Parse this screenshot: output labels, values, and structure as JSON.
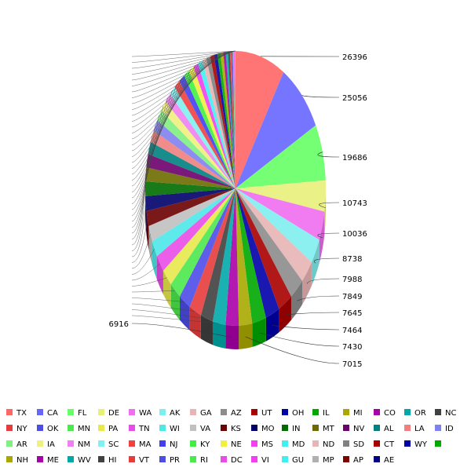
{
  "chart_data": {
    "type": "pie",
    "title": "",
    "legend_position": "bottom",
    "grid": false,
    "categories": [
      "TX",
      "CA",
      "FL",
      "DE",
      "WA",
      "AK",
      "GA",
      "AZ",
      "UT",
      "OH",
      "IL",
      "MI",
      "CO",
      "OR",
      "NC",
      "NY",
      "OK",
      "MN",
      "PA",
      "TN",
      "WI",
      "VA",
      "KS",
      "MO",
      "IN",
      "MT",
      "NV",
      "AL",
      "LA",
      "ID",
      "AR",
      "IA",
      "NM",
      "SC",
      "MA",
      "NJ",
      "KY",
      "NE",
      "MS",
      "MD",
      "ND",
      "SD",
      "CT",
      "WY",
      "",
      "NH",
      "ME",
      "WV",
      "HI",
      "VT",
      "PR",
      "RI",
      "DC",
      "VI",
      "GU",
      "MP",
      "AP",
      "AE"
    ],
    "values": [
      26396,
      25056,
      19686,
      10743,
      10036,
      8738,
      7988,
      7849,
      7645,
      7464,
      7430,
      7015,
      6916,
      6810,
      6519,
      6453,
      6362,
      6202,
      6115,
      5948,
      5683,
      5523,
      5338,
      5077,
      5045,
      4874,
      4621,
      4352,
      4201,
      4050,
      3885,
      3731,
      3565,
      3399,
      3240,
      3075,
      2955,
      2771,
      2585,
      2446,
      2285,
      2130,
      1970,
      1808,
      1650,
      1489,
      1326,
      1167,
      1003,
      845,
      686,
      527,
      372,
      212,
      152,
      92,
      38,
      9
    ],
    "label_values": [
      "26396",
      "25056",
      "19686",
      "10743",
      "10036",
      "8738",
      "7988",
      "7849",
      "7645",
      "7464",
      "7430",
      "7015",
      "6916"
    ],
    "colors": [
      "#FF6666",
      "#6666FF",
      "#66FF66",
      "#E8F07A",
      "#F06EF0",
      "#7FEEEE",
      "#E8B4B4",
      "#8C8C8C",
      "#A80000",
      "#0000A8",
      "#00A800",
      "#A8A800",
      "#A800A8",
      "#00A8A8",
      "#404040",
      "#E83C3C",
      "#4D4DE8",
      "#4DE84D",
      "#E8E84D",
      "#E84DE8",
      "#4DE8E8",
      "#C0C0C0",
      "#6B0000",
      "#00006B",
      "#006B00",
      "#6B6B00",
      "#6B006B",
      "#008080",
      "#F08080",
      "#8080F0",
      "#80F080",
      "#F0F080",
      "#F080F0",
      "#80F0F0",
      "#F04040",
      "#4040F0",
      "#40F040",
      "#F0F040",
      "#F040F0",
      "#40F0F0",
      "#E8B4B4",
      "#808080",
      "#A80000",
      "#0000A8",
      "#00A800",
      "#A8A800",
      "#A800A8",
      "#00A8A8",
      "#404040",
      "#E83C3C",
      "#4D4DE8",
      "#4DE84D",
      "#E84DE8",
      "#F040F0",
      "#40F0F0",
      "#B0B0B0",
      "#800000",
      "#000080"
    ]
  }
}
